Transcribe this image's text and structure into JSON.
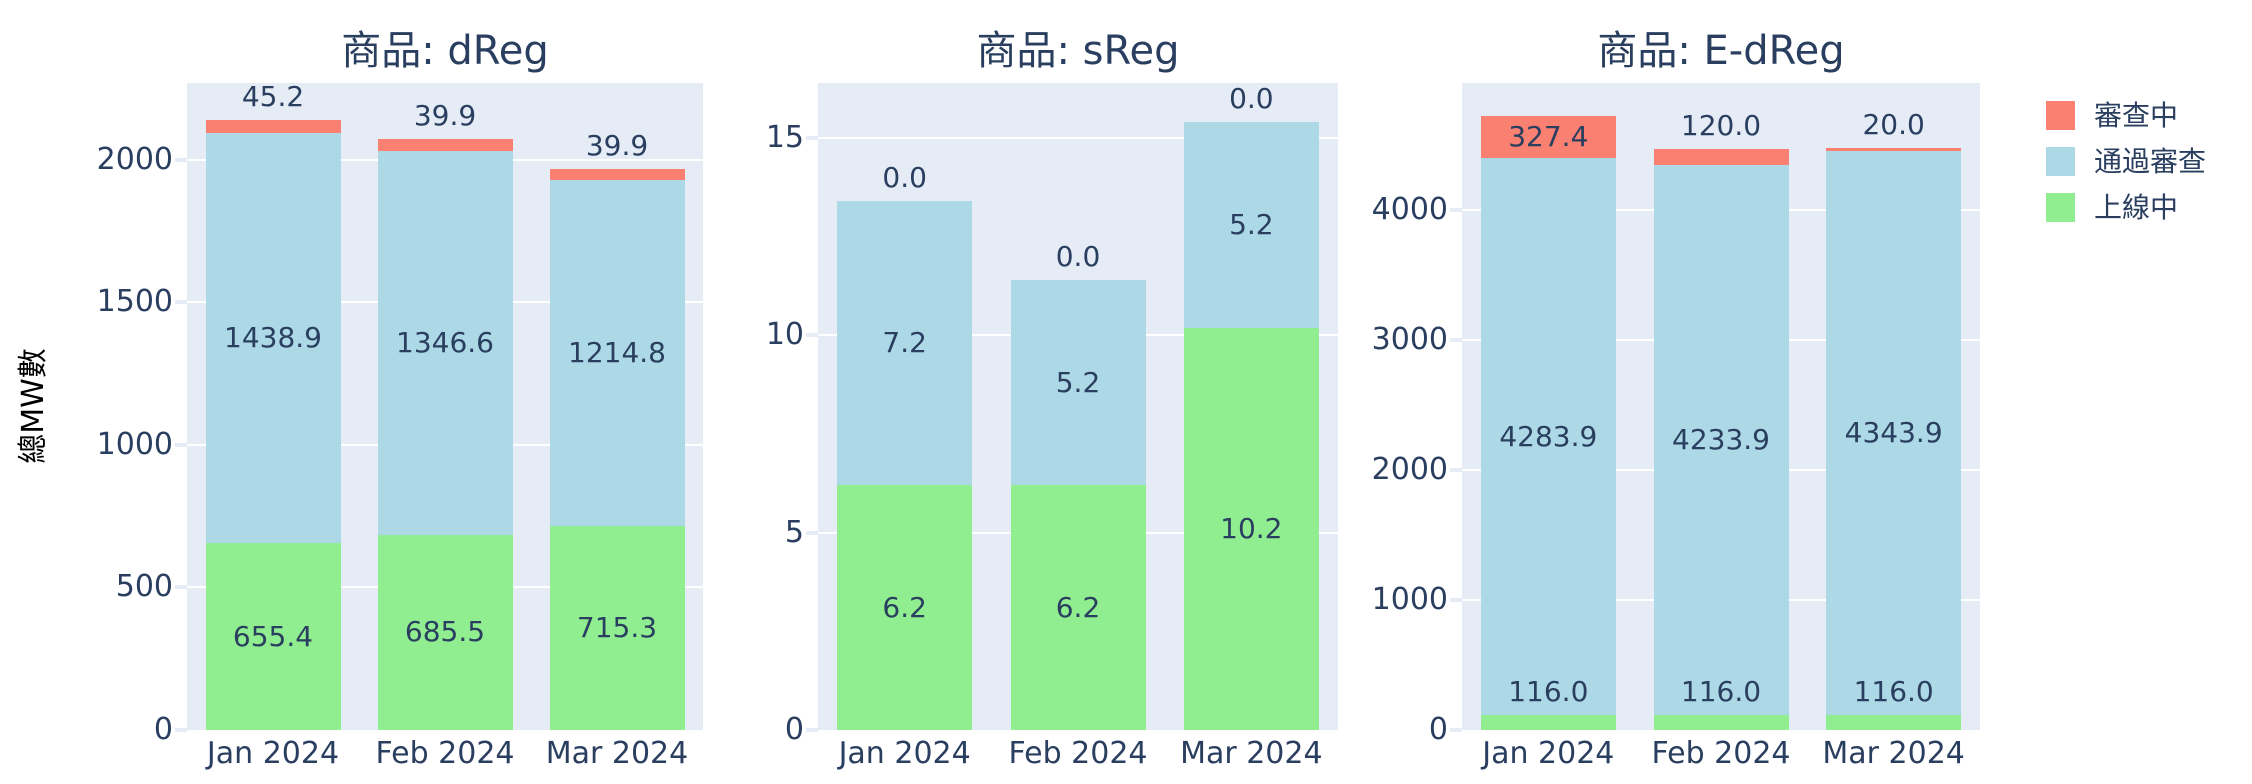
{
  "chart_data": {
    "type": "bar",
    "barmode": "stack",
    "categories": [
      "Jan 2024",
      "Feb 2024",
      "Mar 2024"
    ],
    "ylabel": "總MW數",
    "grid": true,
    "legend": {
      "position": "top-right",
      "items": [
        {
          "label": "審查中",
          "color": "#FA8072"
        },
        {
          "label": "通過審查",
          "color": "#ADD8E6"
        },
        {
          "label": "上線中",
          "color": "#90EE90"
        }
      ]
    },
    "facets": [
      {
        "title": "商品: dReg",
        "ylim": [
          0,
          2270
        ],
        "yticks": [
          0,
          500,
          1000,
          1500,
          2000
        ],
        "series": [
          {
            "name": "上線中",
            "color": "#90EE90",
            "values": [
              655.4,
              685.5,
              715.3
            ]
          },
          {
            "name": "通過審查",
            "color": "#ADD8E6",
            "values": [
              1438.9,
              1346.6,
              1214.8
            ]
          },
          {
            "name": "審查中",
            "color": "#FA8072",
            "values": [
              45.2,
              39.9,
              39.9
            ]
          }
        ]
      },
      {
        "title": "商品: sReg",
        "ylim": [
          0,
          16.4
        ],
        "yticks": [
          0,
          5,
          10,
          15
        ],
        "series": [
          {
            "name": "上線中",
            "color": "#90EE90",
            "values": [
              6.2,
              6.2,
              10.2
            ]
          },
          {
            "name": "通過審查",
            "color": "#ADD8E6",
            "values": [
              7.2,
              5.2,
              5.2
            ]
          },
          {
            "name": "審查中",
            "color": "#FA8072",
            "values": [
              0.0,
              0.0,
              0.0
            ]
          }
        ]
      },
      {
        "title": "商品: E-dReg",
        "ylim": [
          0,
          4980
        ],
        "yticks": [
          0,
          1000,
          2000,
          3000,
          4000
        ],
        "series": [
          {
            "name": "上線中",
            "color": "#90EE90",
            "values": [
              116.0,
              116.0,
              116.0
            ]
          },
          {
            "name": "通過審查",
            "color": "#ADD8E6",
            "values": [
              4283.9,
              4233.9,
              4343.9
            ]
          },
          {
            "name": "審查中",
            "color": "#FA8072",
            "values": [
              327.4,
              120.0,
              20.0
            ]
          }
        ]
      }
    ],
    "style": {
      "plot_bgcolor": "#E5ECF6",
      "paper_bgcolor": "#FFFFFF",
      "font_color": "#2A3F5F",
      "grid_color": "#FFFFFF"
    }
  }
}
